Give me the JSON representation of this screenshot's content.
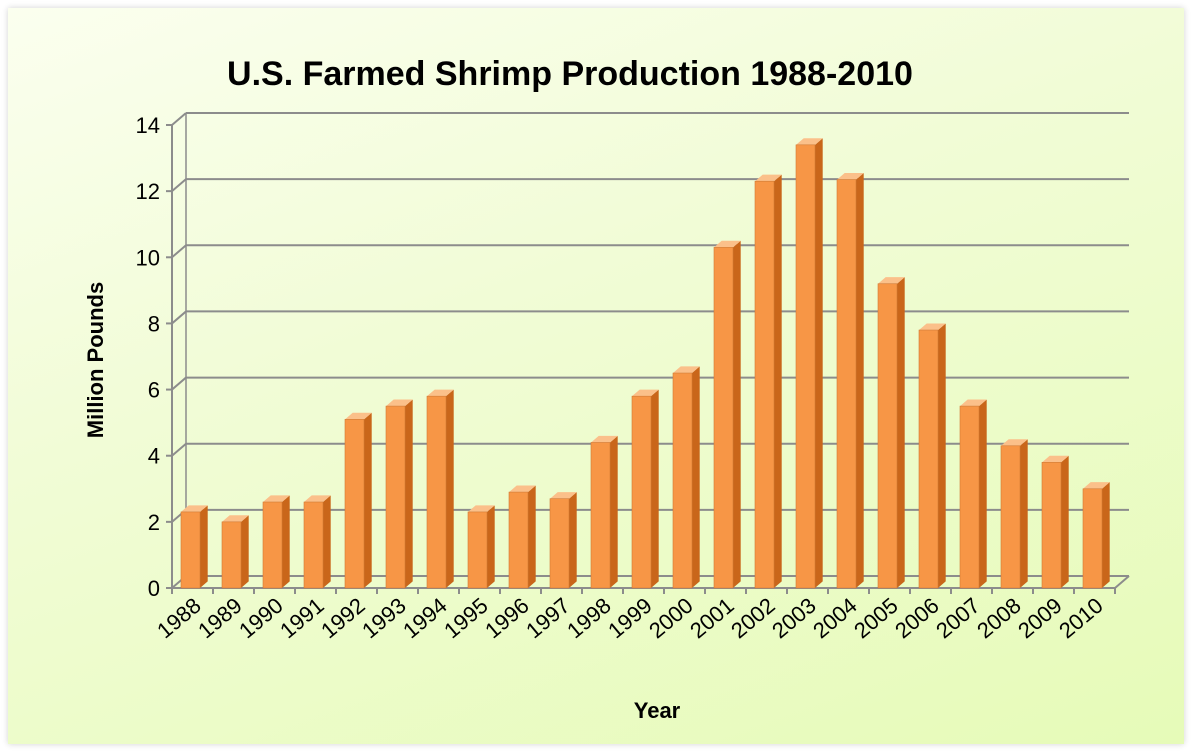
{
  "chart_data": {
    "type": "bar",
    "title": "U.S. Farmed Shrimp Production 1988-2010",
    "xlabel": "Year",
    "ylabel": "Million Pounds",
    "ylim": [
      0,
      14
    ],
    "yticks": [
      0,
      2,
      4,
      6,
      8,
      10,
      12,
      14
    ],
    "grid": true,
    "categories": [
      "1988",
      "1989",
      "1990",
      "1991",
      "1992",
      "1993",
      "1994",
      "1995",
      "1996",
      "1997",
      "1998",
      "1999",
      "2000",
      "2001",
      "2002",
      "2003",
      "2004",
      "2005",
      "2006",
      "2007",
      "2008",
      "2009",
      "2010"
    ],
    "values": [
      2.3,
      2.0,
      2.6,
      2.6,
      5.1,
      5.5,
      5.8,
      2.3,
      2.9,
      2.7,
      4.4,
      5.8,
      6.5,
      10.3,
      12.3,
      13.4,
      12.35,
      9.2,
      7.8,
      5.5,
      4.3,
      3.8,
      3.0
    ],
    "colors": {
      "bar_front": "#f79646",
      "bar_side": "#c9661a",
      "bar_top": "#fbc08a",
      "grid": "#8c8c8c"
    }
  }
}
